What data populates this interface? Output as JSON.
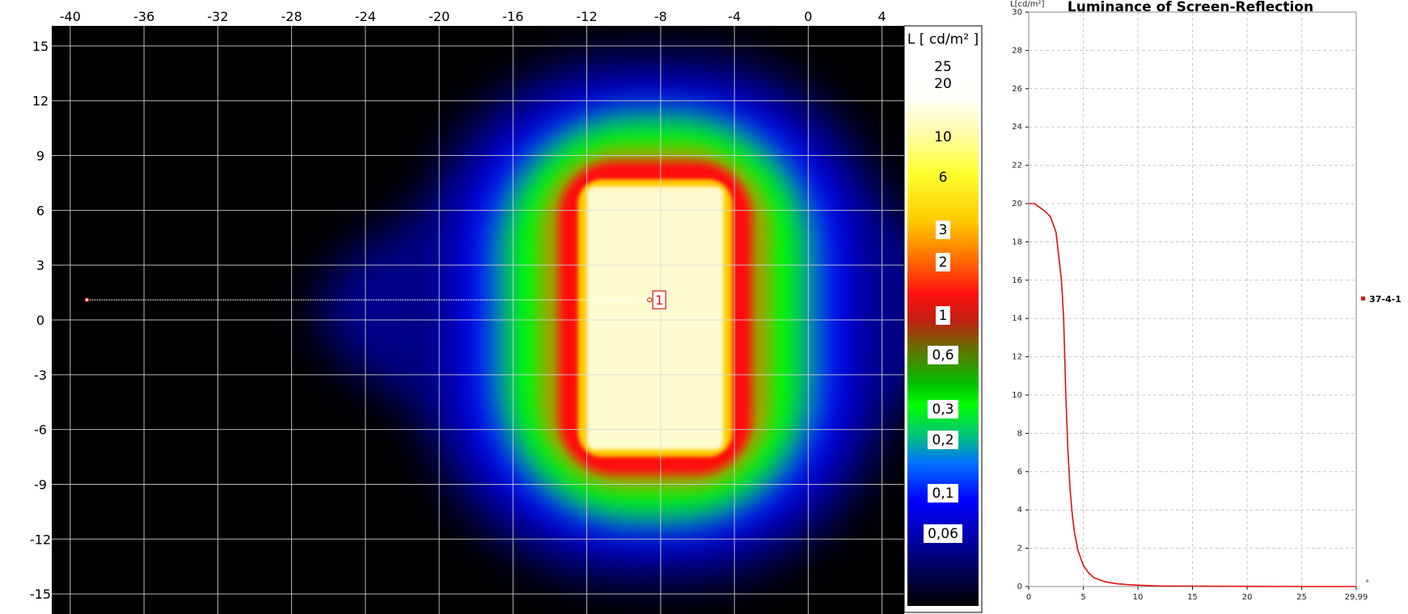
{
  "chart_data": [
    {
      "type": "heatmap",
      "colorbar_title": "L [ cd/m² ]",
      "colorbar_ticks": [
        "25",
        "20",
        "10",
        "6",
        "3",
        "2",
        "1",
        "0,6",
        "0,3",
        "0,2",
        "0,1",
        "0,06"
      ],
      "x_ticks": [
        -40,
        -36,
        -32,
        -28,
        -24,
        -20,
        -16,
        -12,
        -8,
        -4,
        0,
        4
      ],
      "y_ticks": [
        15,
        12,
        9,
        6,
        3,
        0,
        -3,
        -6,
        -9,
        -12,
        -15
      ],
      "xlim": [
        -41,
        5.2
      ],
      "ylim": [
        -16.1,
        16.1
      ],
      "grid": true,
      "bright_region": {
        "x": [
          -12,
          -4.6
        ],
        "y": [
          -7.1,
          7.3
        ],
        "luminance_cd_m2": 20
      },
      "marker": {
        "label": "1",
        "x": -8.6,
        "y": 1.1
      },
      "profile_line": {
        "x_start": -39.1,
        "x_end": -8.6,
        "y": 1.1
      }
    },
    {
      "type": "line",
      "title": "Luminance of Screen-Reflection",
      "ylabel": "L[cd/m²]",
      "xlabel": "°",
      "xlim": [
        0,
        29.99
      ],
      "ylim": [
        0,
        30
      ],
      "x_ticks": [
        "0",
        "5",
        "10",
        "15",
        "20",
        "25",
        "29,99"
      ],
      "y_ticks": [
        0,
        2,
        4,
        6,
        8,
        10,
        12,
        14,
        16,
        18,
        20,
        22,
        24,
        26,
        28,
        30
      ],
      "grid": true,
      "legend_position": "right",
      "series": [
        {
          "name": "37-4-1",
          "color": "#e01010",
          "x": [
            0,
            0.5,
            1.0,
            1.5,
            2.0,
            2.5,
            2.8,
            3.0,
            3.2,
            3.4,
            3.6,
            3.8,
            4.0,
            4.2,
            4.5,
            5.0,
            5.5,
            6.0,
            7.0,
            8.0,
            9.0,
            10.0,
            11.0,
            12.0,
            15.0,
            20.0,
            25.0,
            29.99
          ],
          "y": [
            20.0,
            20.0,
            19.8,
            19.6,
            19.3,
            18.5,
            17.0,
            16.0,
            14.0,
            10.0,
            7.0,
            5.0,
            3.7,
            2.8,
            1.9,
            1.1,
            0.7,
            0.45,
            0.25,
            0.15,
            0.1,
            0.07,
            0.05,
            0.03,
            0.02,
            0.01,
            0.0,
            0.0
          ]
        }
      ]
    }
  ]
}
